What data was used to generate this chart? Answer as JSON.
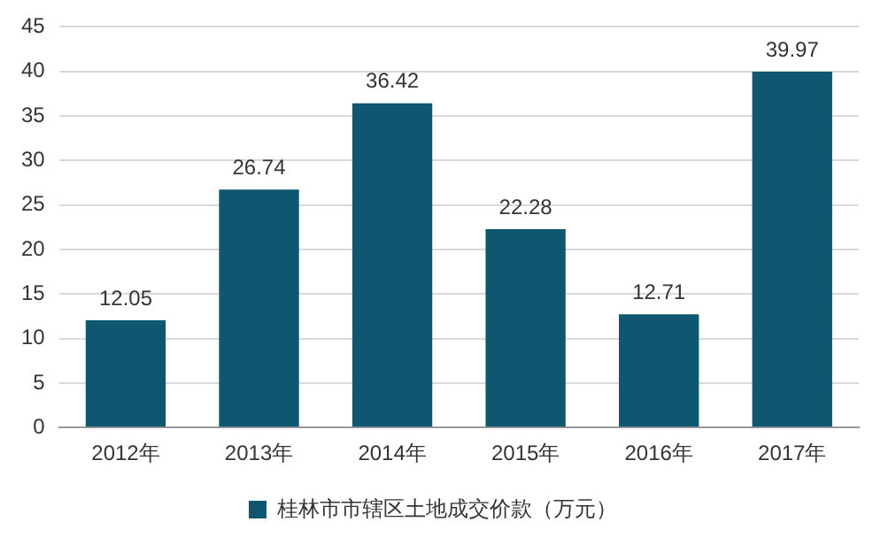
{
  "chart_data": {
    "type": "bar",
    "categories": [
      "2012年",
      "2013年",
      "2014年",
      "2015年",
      "2016年",
      "2017年"
    ],
    "series": [
      {
        "name": "桂林市市辖区土地成交价款（万元）",
        "color": "#0f5670",
        "values": [
          12.05,
          26.74,
          36.42,
          22.28,
          12.71,
          39.97
        ]
      }
    ],
    "ylim": [
      0,
      45
    ],
    "yticks": [
      0,
      5,
      10,
      15,
      20,
      25,
      30,
      35,
      40,
      45
    ],
    "grid": "y",
    "legend": "bottom",
    "data_labels": true
  }
}
